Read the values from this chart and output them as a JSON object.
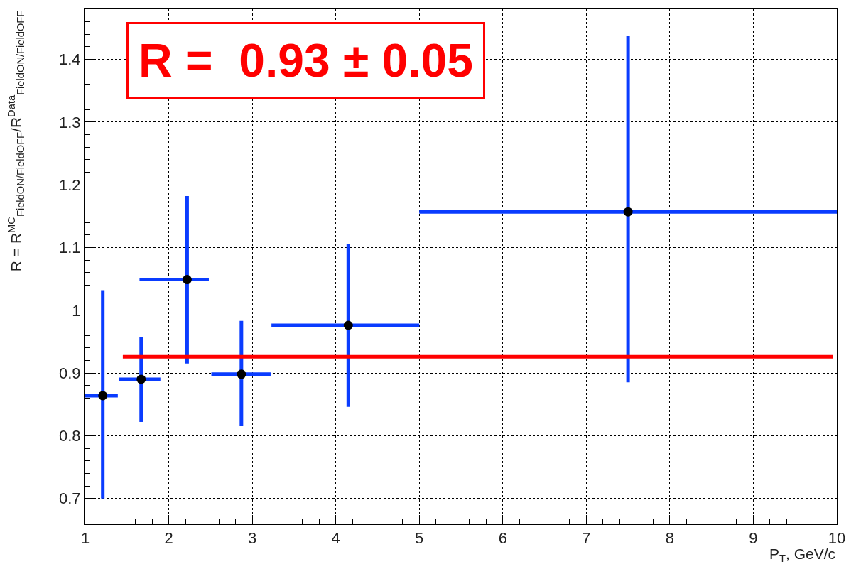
{
  "chart_data": {
    "type": "scatter",
    "xlabel": "P$_{T}$, GeV/c",
    "ylabel": "R = R$^{MC}$$_{FieldON/FieldOFF}$/R$^{Data}$$_{FieldON/FieldOFF}$",
    "annotations": [
      "R =  0.93 ± 0.05"
    ],
    "series": [
      {
        "color": "#000000",
        "marker": "circle",
        "x": [
          1.21,
          1.67,
          2.22,
          2.87,
          4.15,
          7.5
        ],
        "values": [
          0.864,
          0.89,
          1.049,
          0.898,
          0.976,
          1.157
        ],
        "errors": [
          [
            0.7,
            1.032
          ],
          [
            0.822,
            0.957
          ],
          [
            0.915,
            1.182
          ],
          [
            0.816,
            0.983
          ],
          [
            0.846,
            1.106
          ],
          [
            0.885,
            1.438
          ]
        ],
        "xerrors": [
          [
            1.0,
            1.39
          ],
          [
            1.4,
            1.9
          ],
          [
            1.65,
            2.48
          ],
          [
            2.51,
            3.22
          ],
          [
            3.23,
            5.0
          ],
          [
            5.0,
            10.0
          ]
        ]
      },
      {
        "type": "line",
        "color": "#ff0000",
        "x": [
          1.45,
          9.95
        ],
        "values": [
          0.926,
          0.926
        ]
      }
    ],
    "xlim": [
      1,
      10
    ],
    "xticks": [
      1,
      2,
      3,
      4,
      5,
      6,
      7,
      8,
      9,
      10
    ],
    "ylim": [
      0.66,
      1.48
    ],
    "yticks": [
      0.7,
      0.8,
      0.9,
      1,
      1.1,
      1.2,
      1.3,
      1.4
    ],
    "grid": true
  }
}
